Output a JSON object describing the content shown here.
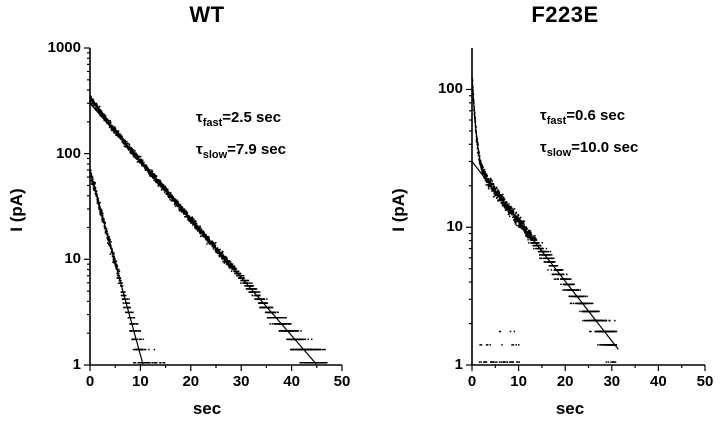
{
  "figure": {
    "background": "#ffffff",
    "foreground": "#000000"
  },
  "chart_data": [
    {
      "type": "scatter",
      "title": "WT",
      "xlabel": "sec",
      "ylabel": "I (pA)",
      "yscale": "log",
      "xlim": [
        0,
        50
      ],
      "ylim": [
        1,
        1000
      ],
      "x_ticks": [
        0,
        10,
        20,
        30,
        40,
        50
      ],
      "y_ticks": [
        1,
        10,
        100,
        1000
      ],
      "legend": false,
      "annotations": [
        {
          "sym": "τ",
          "sub": "fast",
          "rest": "=2.5 sec"
        },
        {
          "sym": "τ",
          "sub": "slow",
          "rest": "=7.9 sec"
        }
      ],
      "series": [
        {
          "name": "current-decay-slow-component",
          "kind": "noisy-exp",
          "components": [
            {
              "I0": 300,
              "tau": 7.9
            },
            {
              "I0": 40,
              "tau": 2.5
            }
          ],
          "t_range": [
            0,
            47
          ],
          "dt": 0.02,
          "mult_noise": 0.035,
          "add_noise": 0.22,
          "quant": 0.35,
          "ridge_samples": {
            "t": [
              0,
              2,
              4,
              6,
              8,
              10,
              12,
              14,
              16,
              18,
              20,
              25,
              30,
              35,
              40,
              45
            ],
            "I": [
              340,
              251,
              189,
              144,
              111,
              85,
              66,
              51,
              40,
              31,
              23.9,
              12.7,
              6.7,
              3.6,
              1.9,
              1.0
            ]
          }
        },
        {
          "name": "current-decay-fast-component",
          "kind": "noisy-exp",
          "components": [
            {
              "I0": 68,
              "tau": 2.5
            }
          ],
          "t_range": [
            0,
            15
          ],
          "dt": 0.02,
          "mult_noise": 0.05,
          "add_noise": 0.4,
          "quant": 0.35,
          "ridge_samples": {
            "t": [
              0,
              2,
              4,
              6,
              8,
              10
            ],
            "I": [
              68,
              30.6,
              13.7,
              6.2,
              2.8,
              1.2
            ]
          }
        }
      ],
      "fits": [
        {
          "name": "slow-fit-line",
          "tau": 7.9,
          "components": [
            {
              "I0": 300,
              "tau": 7.9
            }
          ],
          "t_range": [
            0,
            45
          ]
        },
        {
          "name": "fast-fit-line",
          "tau": 2.5,
          "components": [
            {
              "I0": 68,
              "tau": 2.5
            }
          ],
          "t_range": [
            0,
            10.6
          ]
        }
      ]
    },
    {
      "type": "scatter",
      "title": "F223E",
      "xlabel": "sec",
      "ylabel": "I (pA)",
      "yscale": "log",
      "xlim": [
        0,
        50
      ],
      "ylim": [
        1,
        200
      ],
      "x_ticks": [
        0,
        10,
        20,
        30,
        40,
        50
      ],
      "y_ticks": [
        1,
        10,
        100
      ],
      "legend": false,
      "annotations": [
        {
          "sym": "τ",
          "sub": "fast",
          "rest": "=0.6 sec"
        },
        {
          "sym": "τ",
          "sub": "slow",
          "rest": "=10.0 sec"
        }
      ],
      "series": [
        {
          "name": "current-decay-biexponential",
          "kind": "noisy-exp",
          "components": [
            {
              "I0": 95,
              "tau": 0.6
            },
            {
              "I0": 30,
              "tau": 10
            }
          ],
          "t_range": [
            0,
            31
          ],
          "dt": 0.02,
          "mult_noise": 0.045,
          "add_noise": 0.2,
          "quant": 0.35,
          "ridge_samples": {
            "t": [
              0,
              0.5,
              1,
              2,
              3,
              4,
              5,
              7.5,
              10,
              15,
              20,
              25,
              30
            ],
            "I": [
              125,
              70,
              45,
              28,
              22.9,
              20.2,
              18.2,
              14.2,
              11,
              6.7,
              4.1,
              2.5,
              1.5
            ]
          }
        },
        {
          "name": "baseline-noise-points",
          "kind": "noise-floor",
          "level": 0.62,
          "sigma": 0.45,
          "t_range": [
            1.5,
            10.5
          ],
          "dt": 0.05,
          "quant": 0.35,
          "levels": [
            1.05,
            1.4,
            1.75,
            2.1
          ]
        }
      ],
      "fits": [
        {
          "name": "slow-fit-line",
          "tau": 10.0,
          "components": [
            {
              "I0": 30,
              "tau": 10
            }
          ],
          "t_range": [
            0,
            31.5
          ]
        },
        {
          "name": "biexponential-fit-line",
          "tau": 0.6,
          "components": [
            {
              "I0": 95,
              "tau": 0.6
            },
            {
              "I0": 30,
              "tau": 10
            }
          ],
          "t_range": [
            0,
            8
          ]
        }
      ]
    }
  ]
}
